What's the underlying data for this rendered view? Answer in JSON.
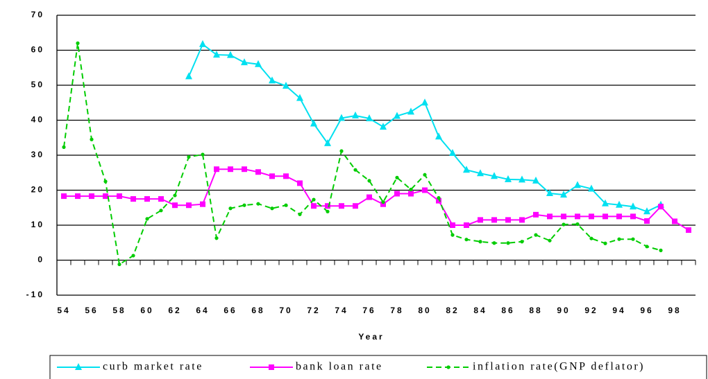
{
  "chart_data": {
    "type": "line",
    "x_label": "Year",
    "categories": [
      "54",
      null,
      "56",
      null,
      "58",
      null,
      "60",
      null,
      "62",
      null,
      "64",
      null,
      "66",
      null,
      "68",
      null,
      "70",
      null,
      "72",
      null,
      "74",
      null,
      "76",
      null,
      "78",
      null,
      "80",
      null,
      "82",
      null,
      "84",
      null,
      "86",
      null,
      "88",
      null,
      "90",
      null,
      "92",
      null,
      "94",
      null,
      "96",
      null,
      "98",
      null
    ],
    "ylim": [
      -10,
      70
    ],
    "yticks": [
      -10,
      0,
      10,
      20,
      30,
      40,
      50,
      60,
      70
    ],
    "grid": true,
    "legend": "bottom",
    "series": [
      {
        "name": "curb market rate",
        "color": "#00e0f0",
        "marker": "triangle",
        "dash": false,
        "values": [
          null,
          null,
          null,
          null,
          null,
          null,
          null,
          null,
          null,
          52.5,
          61.7,
          58.7,
          58.6,
          56.5,
          56,
          51.3,
          49.8,
          46.3,
          39,
          33.4,
          40.6,
          41.3,
          40.5,
          38.1,
          41.2,
          42.4,
          45,
          35.3,
          30.6,
          25.8,
          24.8,
          24,
          23.1,
          23,
          22.7,
          19.1,
          18.7,
          21.4,
          20.4,
          16.2,
          15.8,
          15.3,
          13.9,
          15.8,
          null,
          null
        ]
      },
      {
        "name": "bank loan rate",
        "color": "#ff00ff",
        "marker": "square",
        "dash": false,
        "values": [
          18.3,
          18.3,
          18.3,
          18.3,
          18.3,
          17.5,
          17.5,
          17.5,
          15.7,
          15.7,
          16,
          26,
          26,
          26,
          25.2,
          24,
          24,
          22,
          15.5,
          15.5,
          15.5,
          15.5,
          18,
          16,
          19,
          19,
          20,
          17,
          10,
          10,
          11.5,
          11.5,
          11.5,
          11.5,
          13,
          12.5,
          12.5,
          12.5,
          12.5,
          12.5,
          12.5,
          12.5,
          11.2,
          15.3,
          11.1,
          8.6
        ]
      },
      {
        "name": "inflation rate(GNP deflator)",
        "color": "#00cc00",
        "marker": "circle",
        "dash": true,
        "values": [
          32.3,
          62,
          34.5,
          22.5,
          -1.2,
          1.3,
          11.8,
          14.2,
          18.5,
          29.5,
          30.2,
          6.3,
          14.8,
          15.7,
          16.1,
          14.8,
          15.7,
          13.1,
          17.3,
          13.9,
          31.2,
          25.8,
          22.7,
          16.6,
          23.6,
          20.2,
          24.4,
          17.8,
          7.2,
          5.9,
          5.3,
          4.9,
          4.9,
          5.3,
          7.2,
          5.6,
          10.2,
          10.3,
          6.2,
          4.8,
          6,
          6,
          3.9,
          2.8,
          null,
          null
        ]
      }
    ]
  }
}
